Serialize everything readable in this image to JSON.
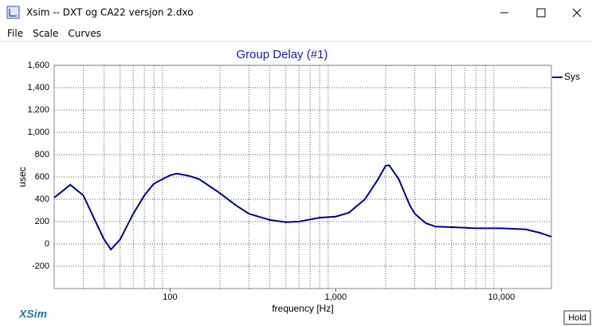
{
  "window": {
    "title": "Xsim -- DXT og CA22 versjon 2.dxo",
    "menu": [
      "File",
      "Scale",
      "Curves"
    ],
    "logo": "XSim",
    "button": "Hold"
  },
  "chart_data": {
    "type": "line",
    "title": "Group Delay (#1)",
    "x_label": "frequency [Hz]",
    "y_label": "usec",
    "log_x": true,
    "grid": true,
    "legend": "right",
    "xlim": [
      20,
      20000
    ],
    "ylim": [
      -400,
      1600
    ],
    "xticks": [
      100,
      {
        "value": 1000,
        "label": "1,000"
      },
      {
        "value": 10000,
        "label": "10,000"
      }
    ],
    "yticks": [
      {
        "value": 1600,
        "label": "1,600"
      },
      {
        "value": 1400,
        "label": "1,400"
      },
      {
        "value": 1200,
        "label": "1,200"
      },
      {
        "value": 1000,
        "label": "1,000"
      },
      800,
      600,
      400,
      200,
      0,
      -200
    ],
    "x": [
      20,
      25,
      30,
      35,
      40,
      44,
      50,
      60,
      70,
      80,
      100,
      110,
      130,
      150,
      200,
      250,
      300,
      400,
      500,
      600,
      800,
      1000,
      1200,
      1500,
      1800,
      2000,
      2100,
      2400,
      2800,
      3000,
      3500,
      4000,
      5000,
      7000,
      10000,
      14000,
      17000,
      20000
    ],
    "series": [
      {
        "name": "Sys",
        "color": "#000090",
        "values": [
          414,
          530,
          435,
          220,
          40,
          -50,
          40,
          270,
          435,
          540,
          615,
          630,
          610,
          580,
          455,
          345,
          270,
          215,
          195,
          200,
          235,
          245,
          280,
          400,
          580,
          700,
          705,
          580,
          345,
          270,
          185,
          155,
          150,
          140,
          140,
          130,
          100,
          65
        ]
      }
    ]
  }
}
